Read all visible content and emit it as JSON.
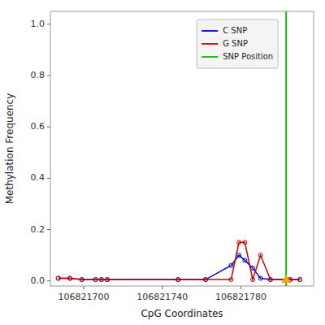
{
  "chart_data": {
    "type": "line",
    "xlabel": "CpG Coordinates",
    "ylabel": "Methylation Frequency",
    "x": [
      106821687,
      106821693,
      106821699,
      106821706,
      106821709,
      106821712,
      106821748,
      106821762,
      106821775,
      106821779,
      106821782,
      106821786,
      106821790,
      106821795,
      106821805,
      106821810
    ],
    "series": [
      {
        "name": "C SNP",
        "color": "#0000cc",
        "marker": "circle",
        "line_style": "solid",
        "values": [
          0.01,
          0.01,
          0.005,
          0.005,
          0.005,
          0.005,
          0.005,
          0.005,
          0.06,
          0.1,
          0.08,
          0.05,
          0.01,
          0.005,
          0.005,
          0.005
        ]
      },
      {
        "name": "G SNP",
        "color": "#cc0000",
        "marker": "circle",
        "line_style": "solid",
        "values": [
          0.01,
          0.01,
          0.005,
          0.005,
          0.005,
          0.005,
          0.005,
          0.005,
          0.005,
          0.15,
          0.15,
          0.005,
          0.1,
          0.005,
          0.005,
          0.005
        ]
      }
    ],
    "snp_position": {
      "name": "SNP Position",
      "x": 106821803,
      "color": "#00bb00"
    },
    "snp_marker": {
      "x": 106821803,
      "y": 0.005,
      "color": "#ffa500",
      "marker": "triangle"
    },
    "xlim": [
      106821683,
      106821817
    ],
    "ylim": [
      -0.02,
      1.05
    ],
    "xticks": [
      106821700,
      106821740,
      106821780
    ],
    "yticks": [
      {
        "value": 0.0,
        "label": "0.0"
      },
      0.2,
      0.4,
      0.6,
      0.8,
      {
        "value": 1.0,
        "label": "1.0"
      }
    ],
    "grid": false,
    "legend": "upper right"
  }
}
